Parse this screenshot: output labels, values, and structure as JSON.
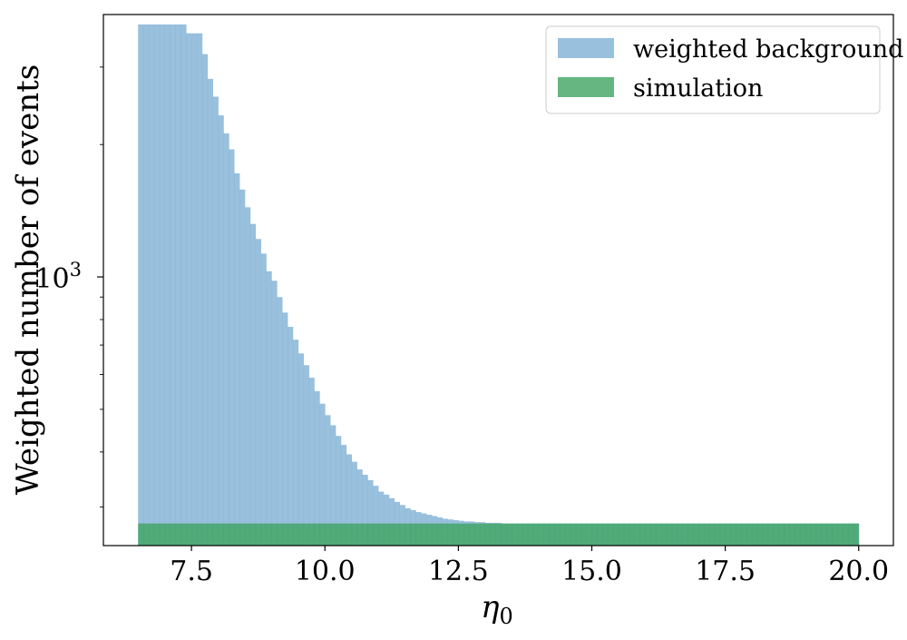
{
  "chart_data": {
    "type": "histogram",
    "xlabel": "η",
    "xlabel_sub": "0",
    "ylabel": "Weighted number of events",
    "xlim": [
      5.85,
      20.65
    ],
    "ylim": [
      245,
      3950
    ],
    "yscale": "log",
    "xticks": [
      7.5,
      10.0,
      12.5,
      15.0,
      17.5,
      20.0
    ],
    "xtick_labels": [
      "7.5",
      "10.0",
      "12.5",
      "15.0",
      "17.5",
      "20.0"
    ],
    "ytick_major": [
      {
        "value": 1000,
        "base": "10",
        "exp": "3"
      }
    ],
    "yticks_minor": [
      300,
      400,
      500,
      600,
      700,
      800,
      900,
      2000,
      3000
    ],
    "legend_position": "top-right",
    "grid": false,
    "bin_range": [
      6.5,
      20.0
    ],
    "bin_width": 0.1,
    "series": [
      {
        "name": "weighted background",
        "color": "#7fb0d5",
        "opacity": 0.8,
        "values": [
          3750,
          3750,
          3750,
          3750,
          3750,
          3750,
          3750,
          3750,
          3750,
          3580,
          3580,
          3580,
          3210,
          2820,
          2570,
          2330,
          2120,
          1950,
          1720,
          1580,
          1440,
          1320,
          1220,
          1130,
          1030,
          980,
          900,
          830,
          770,
          720,
          670,
          630,
          590,
          550,
          515,
          485,
          460,
          435,
          415,
          395,
          380,
          365,
          355,
          345,
          335,
          325,
          320,
          314,
          308,
          303,
          298,
          295,
          292,
          290,
          288,
          286,
          284,
          282,
          281,
          280,
          279,
          278,
          278,
          277,
          277,
          276,
          276,
          276,
          275,
          275,
          275,
          275,
          275,
          275,
          275,
          275,
          275,
          275,
          275,
          275,
          275,
          275,
          275,
          275,
          275,
          275,
          275,
          275,
          275,
          275,
          275,
          275,
          275,
          275,
          275,
          275,
          275,
          275,
          275,
          275,
          275,
          275,
          275,
          275,
          275,
          275,
          275,
          275,
          275,
          275,
          275,
          275,
          275,
          275,
          275,
          275,
          275,
          275,
          275,
          275,
          275,
          275,
          275,
          275,
          275,
          275,
          275,
          275,
          275,
          275,
          275,
          275,
          275,
          275,
          275,
          275,
          275,
          275,
          275
        ]
      },
      {
        "name": "simulation",
        "color": "#3ea462",
        "opacity": 0.8,
        "values": [
          275
        ]
      }
    ]
  }
}
